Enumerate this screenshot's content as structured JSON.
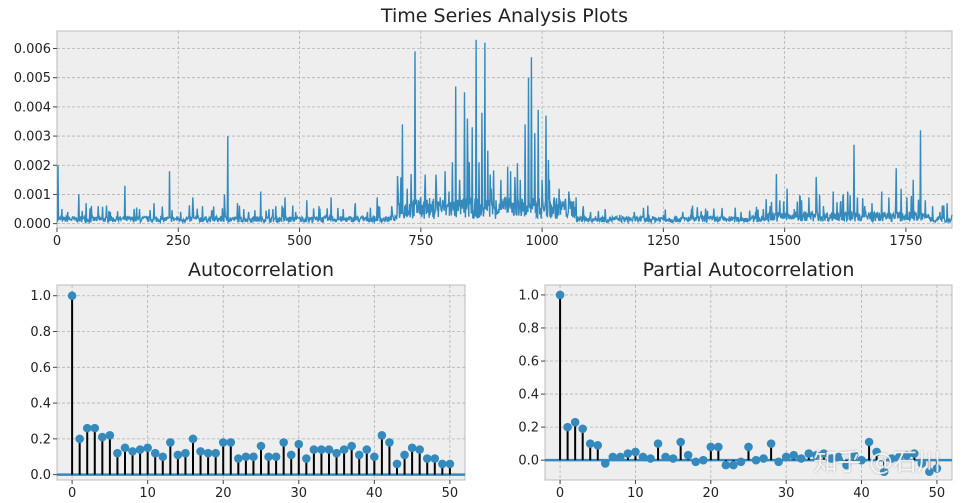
{
  "chart_data": [
    {
      "type": "line",
      "title": "Time Series Analysis Plots",
      "xlabel": "",
      "ylabel": "",
      "xlim": [
        0,
        1845
      ],
      "ylim": [
        -0.00015,
        0.0066
      ],
      "xticks": [
        0,
        250,
        500,
        750,
        1000,
        1250,
        1500,
        1750
      ],
      "yticks": [
        0.0,
        0.001,
        0.002,
        0.003,
        0.004,
        0.005,
        0.006
      ],
      "ytick_labels": [
        "0.000",
        "0.001",
        "0.002",
        "0.003",
        "0.004",
        "0.005",
        "0.006"
      ],
      "grid": true,
      "color": "#348ABD",
      "baseline": 0.00015,
      "spikes": [
        [
          2,
          0.002
        ],
        [
          10,
          0.0005
        ],
        [
          22,
          0.0004
        ],
        [
          45,
          0.001
        ],
        [
          60,
          0.0007
        ],
        [
          85,
          0.0006
        ],
        [
          110,
          0.0004
        ],
        [
          140,
          0.0013
        ],
        [
          170,
          0.0005
        ],
        [
          200,
          0.0007
        ],
        [
          232,
          0.0018
        ],
        [
          255,
          0.0004
        ],
        [
          280,
          0.0009
        ],
        [
          300,
          0.0006
        ],
        [
          322,
          0.0004
        ],
        [
          345,
          0.001
        ],
        [
          352,
          0.003
        ],
        [
          372,
          0.0007
        ],
        [
          395,
          0.0004
        ],
        [
          420,
          0.0011
        ],
        [
          445,
          0.0005
        ],
        [
          470,
          0.0009
        ],
        [
          492,
          0.0004
        ],
        [
          515,
          0.0008
        ],
        [
          540,
          0.0006
        ],
        [
          565,
          0.0009
        ],
        [
          590,
          0.0005
        ],
        [
          615,
          0.0007
        ],
        [
          640,
          0.0004
        ],
        [
          660,
          0.0009
        ],
        [
          690,
          0.0006
        ],
        [
          703,
          0.0012
        ],
        [
          712,
          0.0034
        ],
        [
          722,
          0.0012
        ],
        [
          730,
          0.0017
        ],
        [
          738,
          0.0059
        ],
        [
          745,
          0.0008
        ],
        [
          758,
          0.0011
        ],
        [
          772,
          0.0006
        ],
        [
          782,
          0.0014
        ],
        [
          790,
          0.0009
        ],
        [
          800,
          0.0018
        ],
        [
          808,
          0.0011
        ],
        [
          815,
          0.0021
        ],
        [
          822,
          0.0047
        ],
        [
          830,
          0.0015
        ],
        [
          840,
          0.0045
        ],
        [
          846,
          0.0036
        ],
        [
          850,
          0.0021
        ],
        [
          856,
          0.0033
        ],
        [
          864,
          0.0063
        ],
        [
          870,
          0.0021
        ],
        [
          876,
          0.0038
        ],
        [
          882,
          0.0062
        ],
        [
          888,
          0.0025
        ],
        [
          895,
          0.0012
        ],
        [
          905,
          0.0008
        ],
        [
          915,
          0.0015
        ],
        [
          925,
          0.0009
        ],
        [
          935,
          0.0018
        ],
        [
          945,
          0.0009
        ],
        [
          955,
          0.0015
        ],
        [
          965,
          0.0034
        ],
        [
          972,
          0.005
        ],
        [
          978,
          0.0057
        ],
        [
          985,
          0.0031
        ],
        [
          992,
          0.0039
        ],
        [
          1000,
          0.0015
        ],
        [
          1008,
          0.0037
        ],
        [
          1015,
          0.0015
        ],
        [
          1025,
          0.0009
        ],
        [
          1035,
          0.0012
        ],
        [
          1045,
          0.0007
        ],
        [
          1055,
          0.0011
        ],
        [
          1070,
          0.0009
        ],
        [
          1085,
          0.0006
        ],
        [
          1100,
          0.0004
        ],
        [
          1130,
          0.0005
        ],
        [
          1160,
          0.0003
        ],
        [
          1190,
          0.0004
        ],
        [
          1220,
          0.0003
        ],
        [
          1250,
          0.0003
        ],
        [
          1290,
          0.0004
        ],
        [
          1330,
          0.0003
        ],
        [
          1370,
          0.0003
        ],
        [
          1410,
          0.0004
        ],
        [
          1440,
          0.0004
        ],
        [
          1470,
          0.0006
        ],
        [
          1483,
          0.0017
        ],
        [
          1490,
          0.0008
        ],
        [
          1505,
          0.0012
        ],
        [
          1520,
          0.0005
        ],
        [
          1535,
          0.0008
        ],
        [
          1550,
          0.0009
        ],
        [
          1565,
          0.0016
        ],
        [
          1580,
          0.0006
        ],
        [
          1600,
          0.0011
        ],
        [
          1615,
          0.0007
        ],
        [
          1630,
          0.0011
        ],
        [
          1643,
          0.0027
        ],
        [
          1650,
          0.0009
        ],
        [
          1665,
          0.0006
        ],
        [
          1680,
          0.0007
        ],
        [
          1700,
          0.0011
        ],
        [
          1715,
          0.0009
        ],
        [
          1730,
          0.0019
        ],
        [
          1740,
          0.0012
        ],
        [
          1752,
          0.0009
        ],
        [
          1765,
          0.0015
        ],
        [
          1780,
          0.0032
        ],
        [
          1790,
          0.0008
        ],
        [
          1805,
          0.0006
        ],
        [
          1820,
          0.0004
        ],
        [
          1835,
          0.0007
        ],
        [
          1845,
          0.0003
        ]
      ]
    },
    {
      "type": "stem",
      "title": "Autocorrelation",
      "xlabel": "",
      "ylabel": "",
      "xlim": [
        -2,
        52
      ],
      "ylim": [
        -0.03,
        1.06
      ],
      "xticks": [
        0,
        10,
        20,
        30,
        40,
        50
      ],
      "yticks": [
        0.0,
        0.2,
        0.4,
        0.6,
        0.8,
        1.0
      ],
      "ytick_labels": [
        "0.0",
        "0.2",
        "0.4",
        "0.6",
        "0.8",
        "1.0"
      ],
      "grid": true,
      "marker_color": "#348ABD",
      "stem_color": "#000000",
      "x": [
        0,
        1,
        2,
        3,
        4,
        5,
        6,
        7,
        8,
        9,
        10,
        11,
        12,
        13,
        14,
        15,
        16,
        17,
        18,
        19,
        20,
        21,
        22,
        23,
        24,
        25,
        26,
        27,
        28,
        29,
        30,
        31,
        32,
        33,
        34,
        35,
        36,
        37,
        38,
        39,
        40,
        41,
        42,
        43,
        44,
        45,
        46,
        47,
        48,
        49,
        50
      ],
      "values": [
        1.0,
        0.2,
        0.26,
        0.26,
        0.21,
        0.22,
        0.12,
        0.15,
        0.13,
        0.14,
        0.15,
        0.12,
        0.1,
        0.18,
        0.11,
        0.12,
        0.2,
        0.13,
        0.12,
        0.12,
        0.18,
        0.18,
        0.09,
        0.1,
        0.1,
        0.16,
        0.1,
        0.1,
        0.18,
        0.11,
        0.17,
        0.09,
        0.14,
        0.14,
        0.14,
        0.12,
        0.14,
        0.16,
        0.11,
        0.14,
        0.1,
        0.22,
        0.18,
        0.06,
        0.11,
        0.15,
        0.14,
        0.09,
        0.09,
        0.06,
        0.06
      ]
    },
    {
      "type": "stem",
      "title": "Partial Autocorrelation",
      "xlabel": "",
      "ylabel": "",
      "xlim": [
        -2,
        52
      ],
      "ylim": [
        -0.12,
        1.06
      ],
      "xticks": [
        0,
        10,
        20,
        30,
        40,
        50
      ],
      "yticks": [
        0.0,
        0.2,
        0.4,
        0.6,
        0.8,
        1.0
      ],
      "ytick_labels": [
        "0.0",
        "0.2",
        "0.4",
        "0.6",
        "0.8",
        "1.0"
      ],
      "grid": true,
      "marker_color": "#348ABD",
      "stem_color": "#000000",
      "x": [
        0,
        1,
        2,
        3,
        4,
        5,
        6,
        7,
        8,
        9,
        10,
        11,
        12,
        13,
        14,
        15,
        16,
        17,
        18,
        19,
        20,
        21,
        22,
        23,
        24,
        25,
        26,
        27,
        28,
        29,
        30,
        31,
        32,
        33,
        34,
        35,
        36,
        37,
        38,
        39,
        40,
        41,
        42,
        43,
        44,
        45,
        46,
        47,
        48,
        49,
        50
      ],
      "values": [
        1.0,
        0.2,
        0.23,
        0.19,
        0.1,
        0.09,
        -0.02,
        0.02,
        0.02,
        0.04,
        0.05,
        0.02,
        0.01,
        0.1,
        0.02,
        0.01,
        0.11,
        0.03,
        -0.01,
        0.0,
        0.08,
        0.08,
        -0.03,
        -0.03,
        -0.01,
        0.08,
        0.0,
        0.01,
        0.1,
        -0.01,
        0.02,
        0.03,
        0.01,
        0.04,
        0.03,
        0.04,
        0.01,
        0.02,
        -0.03,
        0.03,
        0.0,
        0.11,
        0.05,
        -0.07,
        0.01,
        0.02,
        0.03,
        0.04,
        -0.02,
        -0.07,
        -0.05
      ]
    }
  ],
  "watermark": "知乎 @石川"
}
